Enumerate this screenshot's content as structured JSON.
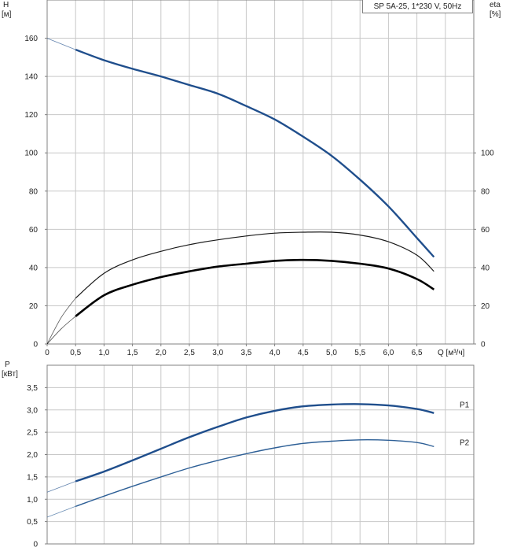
{
  "chart_data": [
    {
      "type": "line",
      "panel": "head-efficiency",
      "title": "SP 5A-25, 1*230 V, 50Hz",
      "xlabel": "Q [м³/ч]",
      "ylabel_left": [
        "H",
        "[м]"
      ],
      "ylabel_right": [
        "eta",
        "[%]"
      ],
      "xlim": [
        0,
        7.5
      ],
      "ylim": [
        0,
        180
      ],
      "xticks": [
        "0",
        "0,5",
        "1,0",
        "1,5",
        "2,0",
        "2,5",
        "3,0",
        "3,5",
        "4,0",
        "4,5",
        "5,0",
        "5,5",
        "6,0",
        "6,5"
      ],
      "yticks_left": [
        "0",
        "20",
        "40",
        "60",
        "80",
        "100",
        "120",
        "140",
        "160"
      ],
      "yticks_right": [
        "0",
        "20",
        "40",
        "60",
        "80",
        "100"
      ],
      "grid": true,
      "series": [
        {
          "id": "head",
          "color": "#1f4e8c",
          "points": [
            [
              0.5,
              154
            ],
            [
              1.0,
              148.5
            ],
            [
              1.5,
              144
            ],
            [
              2.0,
              140
            ],
            [
              2.5,
              135.5
            ],
            [
              3.0,
              131
            ],
            [
              3.5,
              124.5
            ],
            [
              4.0,
              117.5
            ],
            [
              4.5,
              108.5
            ],
            [
              5.0,
              98.5
            ],
            [
              5.5,
              86
            ],
            [
              6.0,
              72
            ],
            [
              6.5,
              55.5
            ],
            [
              6.8,
              45.5
            ]
          ],
          "extrapolated": [
            [
              0,
              160
            ],
            [
              0.5,
              154
            ]
          ]
        },
        {
          "id": "efficiency-total",
          "color": "#1a1a1a",
          "points": [
            [
              0.5,
              24
            ],
            [
              1.0,
              37
            ],
            [
              1.5,
              44
            ],
            [
              2.0,
              48.5
            ],
            [
              2.5,
              52
            ],
            [
              3.0,
              54.5
            ],
            [
              3.5,
              56.5
            ],
            [
              4.0,
              58
            ],
            [
              4.5,
              58.5
            ],
            [
              5.0,
              58.5
            ],
            [
              5.5,
              57
            ],
            [
              6.0,
              53.5
            ],
            [
              6.5,
              46.5
            ],
            [
              6.8,
              38
            ]
          ],
          "extrapolated": [
            [
              0,
              0
            ],
            [
              0.25,
              14
            ],
            [
              0.5,
              24
            ]
          ]
        },
        {
          "id": "efficiency-hydraulic",
          "color": "#000000",
          "points": [
            [
              0.5,
              14.5
            ],
            [
              1.0,
              25.5
            ],
            [
              1.5,
              31
            ],
            [
              2.0,
              35
            ],
            [
              2.5,
              38
            ],
            [
              3.0,
              40.5
            ],
            [
              3.5,
              42
            ],
            [
              4.0,
              43.5
            ],
            [
              4.5,
              44
            ],
            [
              5.0,
              43.5
            ],
            [
              5.5,
              42
            ],
            [
              6.0,
              39.5
            ],
            [
              6.5,
              34
            ],
            [
              6.8,
              28.5
            ]
          ],
          "extrapolated": [
            [
              0,
              0
            ],
            [
              0.25,
              8
            ],
            [
              0.5,
              14.5
            ]
          ]
        }
      ]
    },
    {
      "type": "line",
      "panel": "power",
      "ylabel": [
        "P",
        "[кВт]"
      ],
      "ylim": [
        0,
        4.0
      ],
      "yticks": [
        "0",
        "0,5",
        "1,0",
        "1,5",
        "2,0",
        "2,5",
        "3,0",
        "3,5"
      ],
      "grid": true,
      "series": [
        {
          "id": "P1",
          "name": "P1",
          "color": "#1f4e8c",
          "points": [
            [
              0.5,
              1.4
            ],
            [
              1.0,
              1.62
            ],
            [
              1.5,
              1.87
            ],
            [
              2.0,
              2.13
            ],
            [
              2.5,
              2.39
            ],
            [
              3.0,
              2.62
            ],
            [
              3.5,
              2.83
            ],
            [
              4.0,
              2.98
            ],
            [
              4.5,
              3.08
            ],
            [
              5.0,
              3.12
            ],
            [
              5.5,
              3.13
            ],
            [
              6.0,
              3.1
            ],
            [
              6.5,
              3.02
            ],
            [
              6.8,
              2.93
            ]
          ],
          "extrapolated": [
            [
              0,
              1.16
            ],
            [
              0.5,
              1.4
            ]
          ]
        },
        {
          "id": "P2",
          "name": "P2",
          "color": "#2d5f96",
          "points": [
            [
              0.5,
              0.84
            ],
            [
              1.0,
              1.07
            ],
            [
              1.5,
              1.29
            ],
            [
              2.0,
              1.5
            ],
            [
              2.5,
              1.7
            ],
            [
              3.0,
              1.87
            ],
            [
              3.5,
              2.02
            ],
            [
              4.0,
              2.15
            ],
            [
              4.5,
              2.25
            ],
            [
              5.0,
              2.3
            ],
            [
              5.5,
              2.33
            ],
            [
              6.0,
              2.32
            ],
            [
              6.5,
              2.27
            ],
            [
              6.8,
              2.18
            ]
          ],
          "extrapolated": [
            [
              0,
              0.6
            ],
            [
              0.5,
              0.84
            ]
          ]
        }
      ]
    }
  ]
}
